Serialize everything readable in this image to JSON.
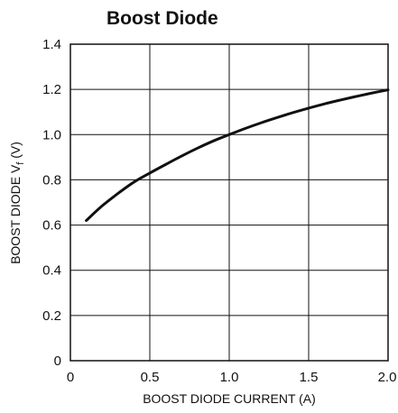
{
  "chart_data": {
    "type": "line",
    "title": "Boost Diode",
    "xlabel": "BOOST DIODE CURRENT (A)",
    "ylabel_main": "BOOST DIODE V",
    "ylabel_sub": "f",
    "ylabel_unit": " (V)",
    "xlim": [
      0,
      2.0
    ],
    "ylim": [
      0,
      1.4
    ],
    "grid": true,
    "x_ticks": [
      0,
      0.5,
      1.0,
      1.5,
      2.0
    ],
    "x_tick_labels": [
      "0",
      "0.5",
      "1.0",
      "1.5",
      "2.0"
    ],
    "y_ticks": [
      0,
      0.2,
      0.4,
      0.6,
      0.8,
      1.0,
      1.2,
      1.4
    ],
    "y_tick_labels": [
      "0",
      "0.2",
      "0.4",
      "0.6",
      "0.8",
      "1.0",
      "1.2",
      "1.4"
    ],
    "series": [
      {
        "x": [
          0.1,
          0.2,
          0.3,
          0.4,
          0.5,
          0.6,
          0.7,
          0.8,
          0.9,
          1.0,
          1.1,
          1.2,
          1.3,
          1.4,
          1.5,
          1.6,
          1.7,
          1.8,
          1.9,
          2.0
        ],
        "y": [
          0.62,
          0.685,
          0.74,
          0.79,
          0.83,
          0.868,
          0.905,
          0.94,
          0.972,
          1.0,
          1.027,
          1.052,
          1.075,
          1.097,
          1.117,
          1.136,
          1.153,
          1.169,
          1.184,
          1.198
        ]
      }
    ]
  }
}
